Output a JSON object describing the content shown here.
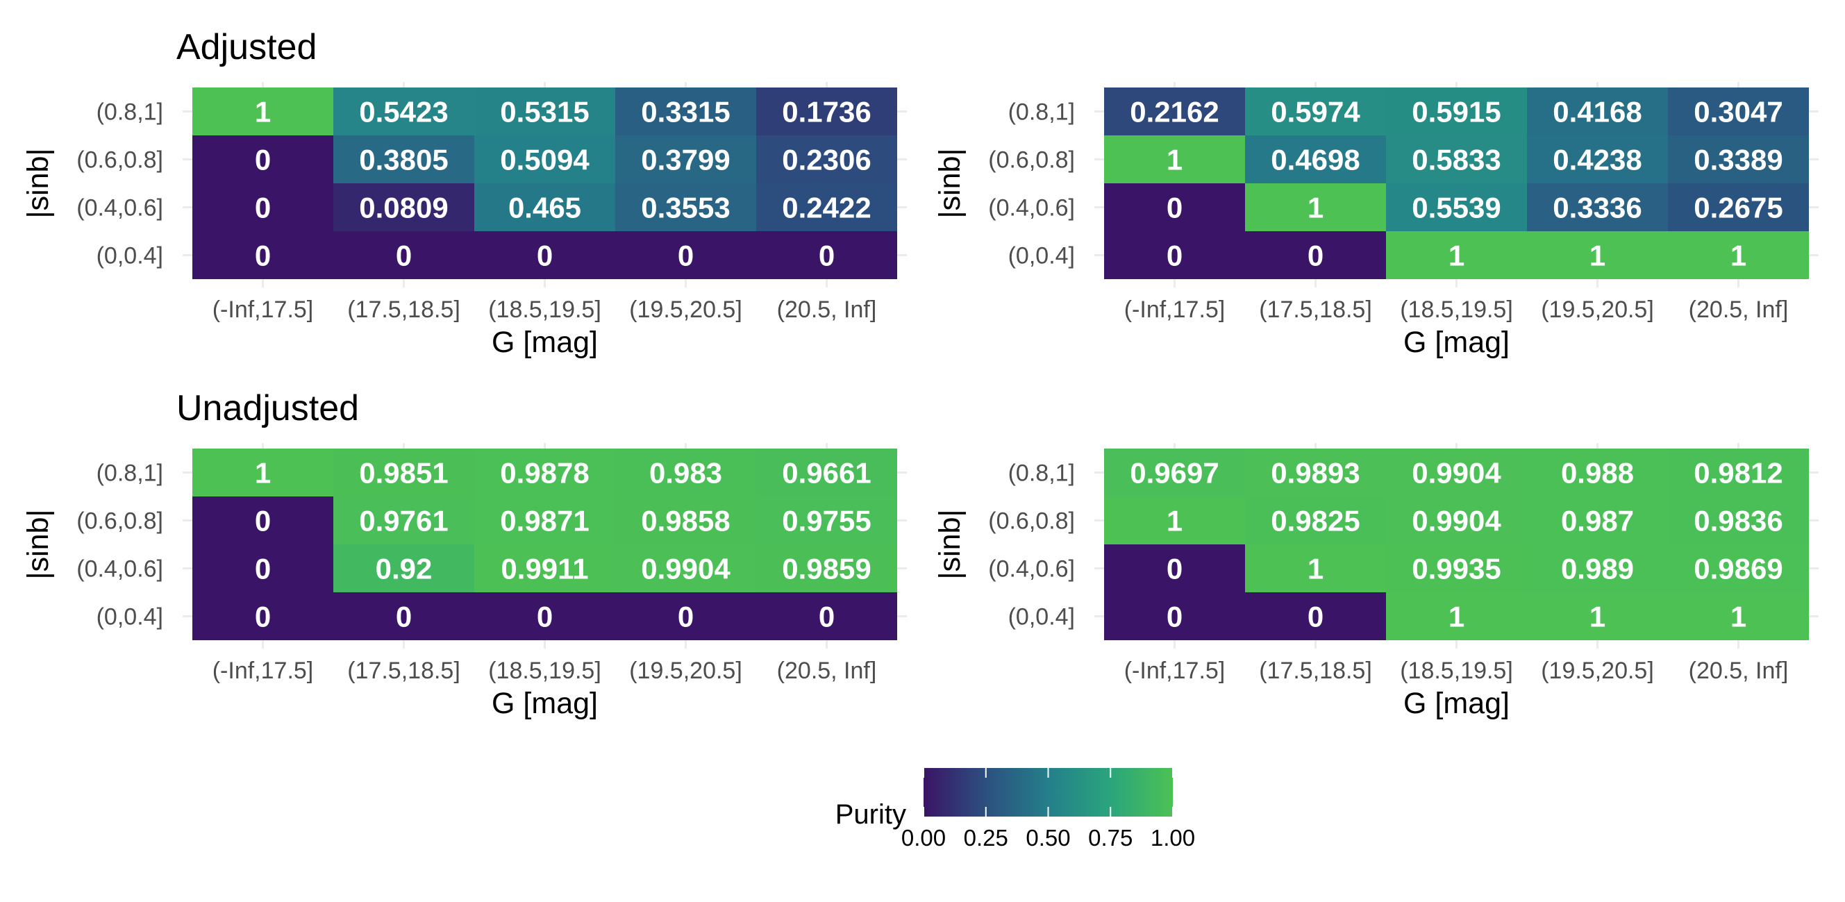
{
  "chart_data": [
    {
      "type": "heatmap",
      "title": "Adjusted",
      "xlabel": "G [mag]",
      "ylabel": "|sinb|",
      "x_categories": [
        "(-Inf,17.5]",
        "(17.5,18.5]",
        "(18.5,19.5]",
        "(19.5,20.5]",
        "(20.5, Inf]"
      ],
      "y_categories": [
        "(0,0.4]",
        "(0.4,0.6]",
        "(0.6,0.8]",
        "(0.8,1]"
      ],
      "values": [
        [
          "0",
          "0",
          "0",
          "0",
          "0"
        ],
        [
          "0",
          "0.0809",
          "0.465",
          "0.3553",
          "0.2422"
        ],
        [
          "0",
          "0.3805",
          "0.5094",
          "0.3799",
          "0.2306"
        ],
        [
          "1",
          "0.5423",
          "0.5315",
          "0.3315",
          "0.1736"
        ]
      ]
    },
    {
      "type": "heatmap",
      "title": "",
      "xlabel": "G [mag]",
      "ylabel": "|sinb|",
      "x_categories": [
        "(-Inf,17.5]",
        "(17.5,18.5]",
        "(18.5,19.5]",
        "(19.5,20.5]",
        "(20.5, Inf]"
      ],
      "y_categories": [
        "(0,0.4]",
        "(0.4,0.6]",
        "(0.6,0.8]",
        "(0.8,1]"
      ],
      "values": [
        [
          "0",
          "0",
          "1",
          "1",
          "1"
        ],
        [
          "0",
          "1",
          "0.5539",
          "0.3336",
          "0.2675"
        ],
        [
          "1",
          "0.4698",
          "0.5833",
          "0.4238",
          "0.3389"
        ],
        [
          "0.2162",
          "0.5974",
          "0.5915",
          "0.4168",
          "0.3047"
        ]
      ]
    },
    {
      "type": "heatmap",
      "title": "Unadjusted",
      "xlabel": "G [mag]",
      "ylabel": "|sinb|",
      "x_categories": [
        "(-Inf,17.5]",
        "(17.5,18.5]",
        "(18.5,19.5]",
        "(19.5,20.5]",
        "(20.5, Inf]"
      ],
      "y_categories": [
        "(0,0.4]",
        "(0.4,0.6]",
        "(0.6,0.8]",
        "(0.8,1]"
      ],
      "values": [
        [
          "0",
          "0",
          "0",
          "0",
          "0"
        ],
        [
          "0",
          "0.92",
          "0.9911",
          "0.9904",
          "0.9859"
        ],
        [
          "0",
          "0.9761",
          "0.9871",
          "0.9858",
          "0.9755"
        ],
        [
          "1",
          "0.9851",
          "0.9878",
          "0.983",
          "0.9661"
        ]
      ]
    },
    {
      "type": "heatmap",
      "title": "",
      "xlabel": "G [mag]",
      "ylabel": "|sinb|",
      "x_categories": [
        "(-Inf,17.5]",
        "(17.5,18.5]",
        "(18.5,19.5]",
        "(19.5,20.5]",
        "(20.5, Inf]"
      ],
      "y_categories": [
        "(0,0.4]",
        "(0.4,0.6]",
        "(0.6,0.8]",
        "(0.8,1]"
      ],
      "values": [
        [
          "0",
          "0",
          "1",
          "1",
          "1"
        ],
        [
          "0",
          "1",
          "0.9935",
          "0.989",
          "0.9869"
        ],
        [
          "1",
          "0.9825",
          "0.9904",
          "0.987",
          "0.9836"
        ],
        [
          "0.9697",
          "0.9893",
          "0.9904",
          "0.988",
          "0.9812"
        ]
      ]
    }
  ],
  "legend": {
    "title": "Purity",
    "placement": "bottom",
    "range": [
      0,
      1
    ],
    "ticks": [
      "0.00",
      "0.25",
      "0.50",
      "0.75",
      "1.00"
    ],
    "colormap": "viridis (begin 0, end 0.75)"
  },
  "colors": {
    "low": "#3a1466",
    "mid_low": "#2c507f",
    "mid": "#247f8a",
    "mid_high": "#2aa57c",
    "high": "#4dc154",
    "cell_text": "#ffffff",
    "background": "#ffffff"
  }
}
